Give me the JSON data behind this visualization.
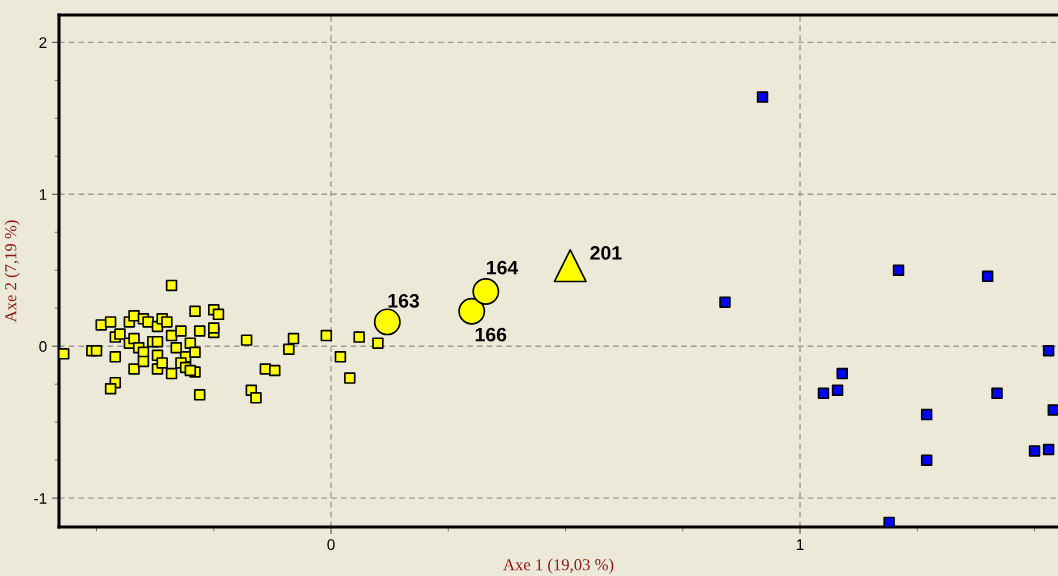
{
  "chart_data": {
    "type": "scatter",
    "xlabel": "Axe 1 (19,03 %)",
    "ylabel": "Axe 2 (7,19 %)",
    "xlim": [
      -0.58,
      1.55
    ],
    "ylim": [
      -1.19,
      2.18
    ],
    "xticks": [
      {
        "value": -0.5,
        "label": null
      },
      {
        "value": -0.25,
        "label": null
      },
      0,
      {
        "value": 0.25,
        "label": null
      },
      {
        "value": 0.5,
        "label": null
      },
      {
        "value": 0.75,
        "label": null
      },
      1,
      {
        "value": 1.25,
        "label": null
      },
      {
        "value": 1.5,
        "label": null
      }
    ],
    "yticks": [
      -1,
      {
        "value": -0.75,
        "label": null
      },
      {
        "value": -0.5,
        "label": null
      },
      {
        "value": -0.25,
        "label": null
      },
      0,
      {
        "value": 0.25,
        "label": null
      },
      {
        "value": 0.5,
        "label": null
      },
      {
        "value": 0.75,
        "label": null
      },
      1,
      {
        "value": 1.25,
        "label": null
      },
      {
        "value": 1.5,
        "label": null
      },
      {
        "value": 1.75,
        "label": null
      },
      2
    ],
    "grid": true,
    "series": [
      {
        "marker": "square",
        "color": "#ffff00",
        "x": [
          -0.57,
          -0.51,
          -0.5,
          -0.49,
          -0.47,
          -0.46,
          -0.46,
          -0.47,
          -0.46,
          -0.45,
          -0.43,
          -0.42,
          -0.43,
          -0.42,
          -0.42,
          -0.41,
          -0.4,
          -0.39,
          -0.4,
          -0.4,
          -0.38,
          -0.37,
          -0.37,
          -0.37,
          -0.36,
          -0.35,
          -0.37,
          -0.36,
          -0.34,
          -0.34,
          -0.33,
          -0.32,
          -0.31,
          -0.32,
          -0.31,
          -0.34,
          -0.3,
          -0.29,
          -0.29,
          -0.3,
          -0.28,
          -0.29,
          -0.28,
          -0.25,
          -0.25,
          -0.25,
          -0.24,
          -0.18,
          -0.17,
          -0.16,
          -0.14,
          -0.12,
          -0.09,
          -0.08,
          -0.01,
          0.02,
          0.04,
          0.06,
          0.1
        ],
        "values": [
          -0.05,
          -0.03,
          -0.03,
          0.14,
          0.16,
          -0.07,
          -0.24,
          -0.28,
          0.06,
          0.08,
          0.16,
          0.2,
          0.02,
          0.05,
          -0.15,
          -0.01,
          0.18,
          0.16,
          -0.04,
          -0.1,
          0.03,
          -0.15,
          0.13,
          0.03,
          0.18,
          0.16,
          -0.06,
          -0.11,
          0.07,
          0.4,
          -0.01,
          0.1,
          -0.07,
          -0.11,
          -0.14,
          -0.18,
          0.02,
          -0.04,
          -0.17,
          -0.16,
          -0.32,
          0.23,
          0.1,
          0.09,
          0.12,
          0.24,
          0.21,
          0.04,
          -0.29,
          -0.34,
          -0.15,
          -0.16,
          -0.02,
          0.05,
          0.07,
          -0.07,
          -0.21,
          0.06,
          0.02
        ]
      },
      {
        "marker": "circle",
        "color": "#ffff00",
        "x": [
          0.12,
          0.3,
          0.33
        ],
        "values": [
          0.16,
          0.23,
          0.36
        ]
      },
      {
        "marker": "triangle",
        "color": "#ffff00",
        "x": [
          0.51
        ],
        "values": [
          0.53
        ]
      },
      {
        "marker": "square",
        "color": "#0000ff",
        "x": [
          0.92,
          0.84,
          1.21,
          1.4,
          1.53,
          1.09,
          1.05,
          1.08,
          1.42,
          1.27,
          1.54,
          1.27,
          1.5,
          1.53,
          1.19
        ],
        "values": [
          1.64,
          0.29,
          0.5,
          0.46,
          -0.03,
          -0.18,
          -0.31,
          -0.29,
          -0.31,
          -0.45,
          -0.42,
          -0.75,
          -0.69,
          -0.68,
          -1.16
        ]
      }
    ],
    "annotations": [
      {
        "text": "163",
        "x": 0.12,
        "y": 0.16
      },
      {
        "text": "166",
        "x": 0.3,
        "y": 0.23
      },
      {
        "text": "164",
        "x": 0.33,
        "y": 0.36
      },
      {
        "text": "201",
        "x": 0.51,
        "y": 0.53
      }
    ]
  }
}
